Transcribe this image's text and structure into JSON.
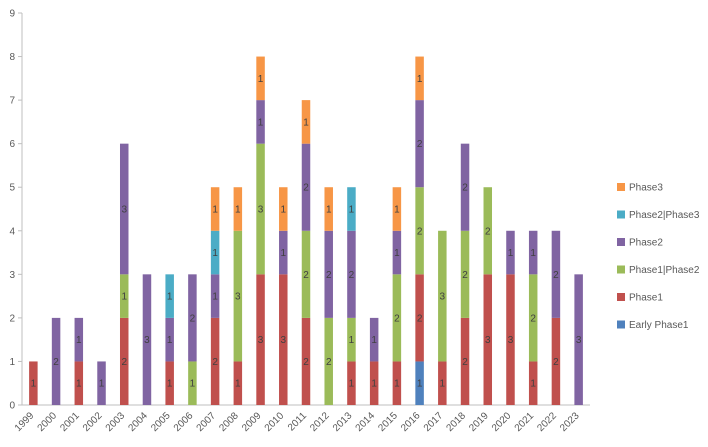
{
  "chart_data": {
    "type": "bar",
    "stacked": true,
    "categories": [
      "1999",
      "2000",
      "2001",
      "2002",
      "2003",
      "2004",
      "2005",
      "2006",
      "2007",
      "2008",
      "2009",
      "2010",
      "2011",
      "2012",
      "2013",
      "2014",
      "2015",
      "2016",
      "2017",
      "2018",
      "2019",
      "2020",
      "2021",
      "2022",
      "2023"
    ],
    "series": [
      {
        "name": "Early Phase1",
        "color": "#4f81bd",
        "values": [
          0,
          0,
          0,
          0,
          0,
          0,
          0,
          0,
          0,
          0,
          0,
          0,
          0,
          0,
          0,
          0,
          0,
          1,
          0,
          0,
          0,
          0,
          0,
          0,
          0
        ]
      },
      {
        "name": "Phase1",
        "color": "#c0504d",
        "values": [
          1,
          0,
          1,
          0,
          2,
          0,
          1,
          0,
          2,
          1,
          3,
          3,
          2,
          0,
          1,
          1,
          1,
          2,
          1,
          2,
          3,
          3,
          1,
          2,
          0
        ]
      },
      {
        "name": "Phase1|Phase2",
        "color": "#9bbb59",
        "values": [
          0,
          0,
          0,
          0,
          1,
          0,
          0,
          1,
          0,
          3,
          3,
          0,
          2,
          2,
          1,
          0,
          2,
          2,
          3,
          2,
          2,
          0,
          2,
          0,
          0
        ]
      },
      {
        "name": "Phase2",
        "color": "#8064a2",
        "values": [
          0,
          2,
          1,
          1,
          3,
          3,
          1,
          2,
          1,
          0,
          1,
          1,
          2,
          2,
          2,
          1,
          1,
          2,
          0,
          2,
          0,
          1,
          1,
          2,
          3
        ]
      },
      {
        "name": "Phase2|Phase3",
        "color": "#4bacc6",
        "values": [
          0,
          0,
          0,
          0,
          0,
          0,
          1,
          0,
          1,
          0,
          0,
          0,
          0,
          0,
          1,
          0,
          0,
          0,
          0,
          0,
          0,
          0,
          0,
          0,
          0
        ]
      },
      {
        "name": "Phase3",
        "color": "#f79646",
        "values": [
          0,
          0,
          0,
          0,
          0,
          0,
          0,
          0,
          1,
          1,
          1,
          1,
          1,
          1,
          0,
          0,
          1,
          1,
          0,
          0,
          0,
          0,
          0,
          0,
          0
        ]
      }
    ],
    "ylim": [
      0,
      9
    ],
    "yticks": [
      "0",
      "1",
      "2",
      "3",
      "4",
      "5",
      "6",
      "7",
      "8",
      "9"
    ],
    "legend_position": "right",
    "legend_order": [
      "Phase3",
      "Phase2|Phase3",
      "Phase2",
      "Phase1|Phase2",
      "Phase1",
      "Early Phase1"
    ],
    "grid": false,
    "show_data_labels": true
  }
}
